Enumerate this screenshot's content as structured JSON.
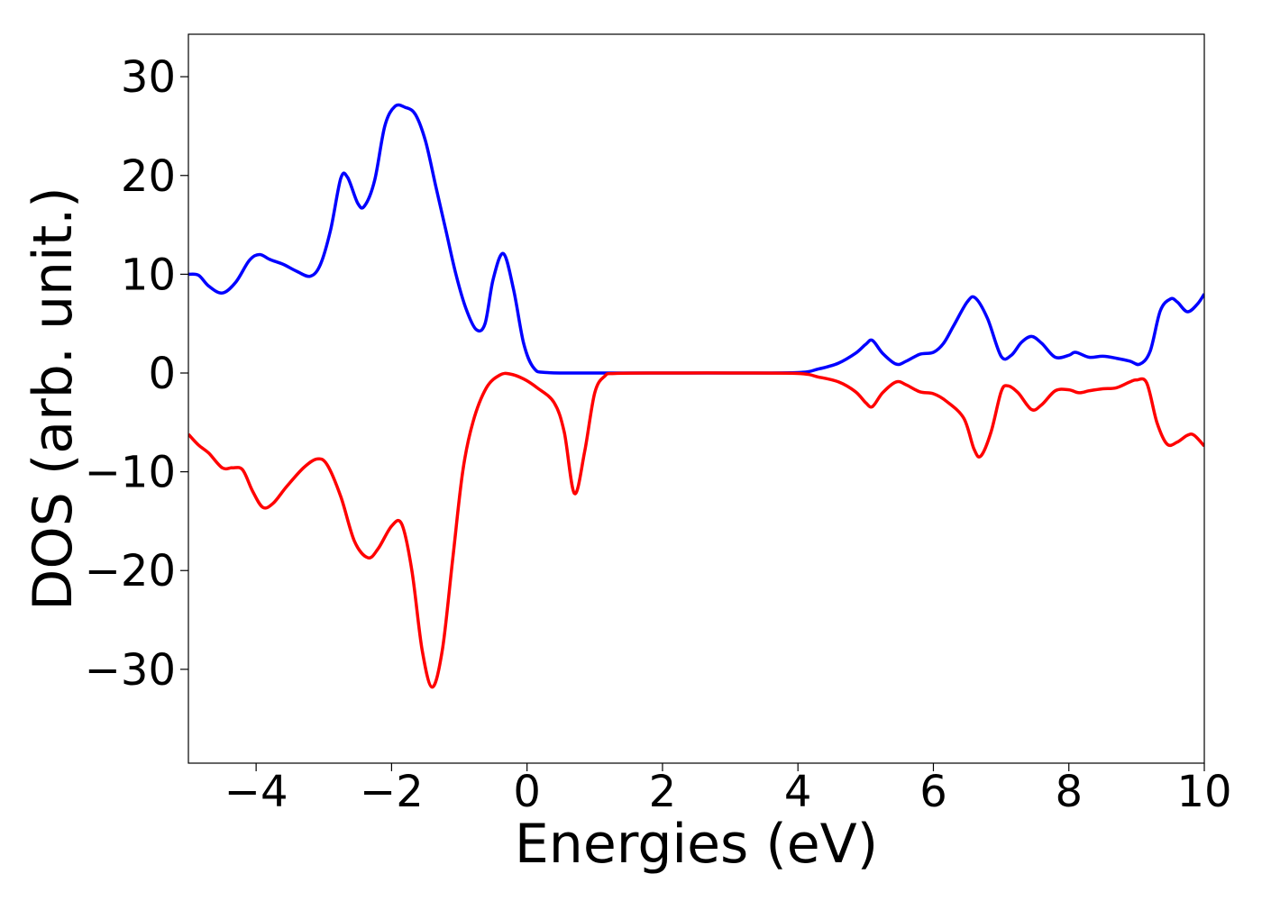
{
  "chart_data": {
    "type": "line",
    "title": "",
    "xlabel": "Energies (eV)",
    "ylabel": "DOS (arb. unit.)",
    "xlim": [
      -5,
      10
    ],
    "ylim": [
      -39.5,
      34.3
    ],
    "xticks": [
      -4,
      -2,
      0,
      2,
      4,
      6,
      8,
      10
    ],
    "xtick_labels": [
      "−4",
      "−2",
      "0",
      "2",
      "4",
      "6",
      "8",
      "10"
    ],
    "yticks": [
      30,
      20,
      10,
      0,
      -10,
      -20,
      -30
    ],
    "ytick_labels": [
      "30",
      "20",
      "10",
      "0",
      "−10",
      "−20",
      "−30"
    ],
    "grid": false,
    "legend": "none",
    "series": [
      {
        "color": "#0000ff",
        "points": [
          [
            -5.0,
            10.0
          ],
          [
            -4.85,
            9.9
          ],
          [
            -4.7,
            8.8
          ],
          [
            -4.5,
            8.1
          ],
          [
            -4.3,
            9.2
          ],
          [
            -4.1,
            11.4
          ],
          [
            -3.95,
            12.0
          ],
          [
            -3.8,
            11.5
          ],
          [
            -3.6,
            11.0
          ],
          [
            -3.4,
            10.3
          ],
          [
            -3.2,
            9.8
          ],
          [
            -3.05,
            11.0
          ],
          [
            -2.9,
            14.5
          ],
          [
            -2.75,
            19.7
          ],
          [
            -2.65,
            19.8
          ],
          [
            -2.5,
            17.2
          ],
          [
            -2.4,
            16.9
          ],
          [
            -2.25,
            19.5
          ],
          [
            -2.1,
            25.0
          ],
          [
            -1.95,
            27.0
          ],
          [
            -1.8,
            26.9
          ],
          [
            -1.65,
            26.2
          ],
          [
            -1.5,
            23.5
          ],
          [
            -1.35,
            19.0
          ],
          [
            -1.2,
            14.5
          ],
          [
            -1.05,
            10.0
          ],
          [
            -0.9,
            6.5
          ],
          [
            -0.75,
            4.4
          ],
          [
            -0.62,
            5.0
          ],
          [
            -0.5,
            9.5
          ],
          [
            -0.35,
            12.1
          ],
          [
            -0.2,
            8.5
          ],
          [
            -0.05,
            3.0
          ],
          [
            0.1,
            0.5
          ],
          [
            0.3,
            0.05
          ],
          [
            1.0,
            0.0
          ],
          [
            2.0,
            0.0
          ],
          [
            3.0,
            0.0
          ],
          [
            4.0,
            0.05
          ],
          [
            4.3,
            0.4
          ],
          [
            4.6,
            1.0
          ],
          [
            4.85,
            2.0
          ],
          [
            5.0,
            2.9
          ],
          [
            5.1,
            3.3
          ],
          [
            5.25,
            2.0
          ],
          [
            5.45,
            0.9
          ],
          [
            5.6,
            1.2
          ],
          [
            5.8,
            1.9
          ],
          [
            6.0,
            2.1
          ],
          [
            6.15,
            3.0
          ],
          [
            6.3,
            4.8
          ],
          [
            6.5,
            7.2
          ],
          [
            6.62,
            7.6
          ],
          [
            6.8,
            5.5
          ],
          [
            7.0,
            1.7
          ],
          [
            7.15,
            1.8
          ],
          [
            7.3,
            3.1
          ],
          [
            7.45,
            3.7
          ],
          [
            7.6,
            3.0
          ],
          [
            7.8,
            1.6
          ],
          [
            8.0,
            1.8
          ],
          [
            8.1,
            2.1
          ],
          [
            8.3,
            1.6
          ],
          [
            8.5,
            1.7
          ],
          [
            8.7,
            1.5
          ],
          [
            8.9,
            1.2
          ],
          [
            9.05,
            0.9
          ],
          [
            9.2,
            2.2
          ],
          [
            9.35,
            6.3
          ],
          [
            9.5,
            7.5
          ],
          [
            9.6,
            7.2
          ],
          [
            9.75,
            6.2
          ],
          [
            9.9,
            7.0
          ],
          [
            10.0,
            8.0
          ]
        ]
      },
      {
        "color": "#ff0000",
        "points": [
          [
            -5.0,
            -6.2
          ],
          [
            -4.85,
            -7.3
          ],
          [
            -4.7,
            -8.1
          ],
          [
            -4.5,
            -9.6
          ],
          [
            -4.35,
            -9.6
          ],
          [
            -4.2,
            -9.8
          ],
          [
            -4.05,
            -12.0
          ],
          [
            -3.9,
            -13.6
          ],
          [
            -3.75,
            -13.2
          ],
          [
            -3.55,
            -11.5
          ],
          [
            -3.3,
            -9.6
          ],
          [
            -3.1,
            -8.7
          ],
          [
            -2.95,
            -9.3
          ],
          [
            -2.75,
            -12.5
          ],
          [
            -2.55,
            -17.0
          ],
          [
            -2.35,
            -18.7
          ],
          [
            -2.2,
            -17.8
          ],
          [
            -2.0,
            -15.5
          ],
          [
            -1.85,
            -15.3
          ],
          [
            -1.7,
            -20.0
          ],
          [
            -1.55,
            -28.0
          ],
          [
            -1.4,
            -31.8
          ],
          [
            -1.25,
            -28.0
          ],
          [
            -1.1,
            -19.0
          ],
          [
            -0.95,
            -10.0
          ],
          [
            -0.8,
            -5.0
          ],
          [
            -0.6,
            -1.5
          ],
          [
            -0.4,
            -0.2
          ],
          [
            -0.25,
            -0.1
          ],
          [
            -0.05,
            -0.6
          ],
          [
            0.15,
            -1.5
          ],
          [
            0.4,
            -3.0
          ],
          [
            0.55,
            -6.0
          ],
          [
            0.7,
            -12.2
          ],
          [
            0.85,
            -8.0
          ],
          [
            1.0,
            -2.0
          ],
          [
            1.15,
            -0.3
          ],
          [
            1.3,
            -0.05
          ],
          [
            2.0,
            0.0
          ],
          [
            3.0,
            0.0
          ],
          [
            4.0,
            -0.05
          ],
          [
            4.3,
            -0.4
          ],
          [
            4.6,
            -0.9
          ],
          [
            4.85,
            -1.9
          ],
          [
            5.0,
            -3.0
          ],
          [
            5.1,
            -3.4
          ],
          [
            5.25,
            -2.0
          ],
          [
            5.45,
            -0.9
          ],
          [
            5.6,
            -1.2
          ],
          [
            5.8,
            -1.9
          ],
          [
            6.0,
            -2.1
          ],
          [
            6.2,
            -2.9
          ],
          [
            6.45,
            -4.6
          ],
          [
            6.6,
            -7.7
          ],
          [
            6.7,
            -8.4
          ],
          [
            6.85,
            -6.0
          ],
          [
            7.0,
            -1.9
          ],
          [
            7.1,
            -1.3
          ],
          [
            7.25,
            -2.0
          ],
          [
            7.45,
            -3.7
          ],
          [
            7.6,
            -3.2
          ],
          [
            7.8,
            -1.8
          ],
          [
            8.0,
            -1.7
          ],
          [
            8.15,
            -2.0
          ],
          [
            8.3,
            -1.8
          ],
          [
            8.5,
            -1.6
          ],
          [
            8.7,
            -1.5
          ],
          [
            8.9,
            -0.9
          ],
          [
            9.0,
            -0.7
          ],
          [
            9.15,
            -1.0
          ],
          [
            9.3,
            -5.0
          ],
          [
            9.45,
            -7.2
          ],
          [
            9.6,
            -7.0
          ],
          [
            9.75,
            -6.3
          ],
          [
            9.85,
            -6.3
          ],
          [
            10.0,
            -7.4
          ]
        ]
      }
    ]
  }
}
